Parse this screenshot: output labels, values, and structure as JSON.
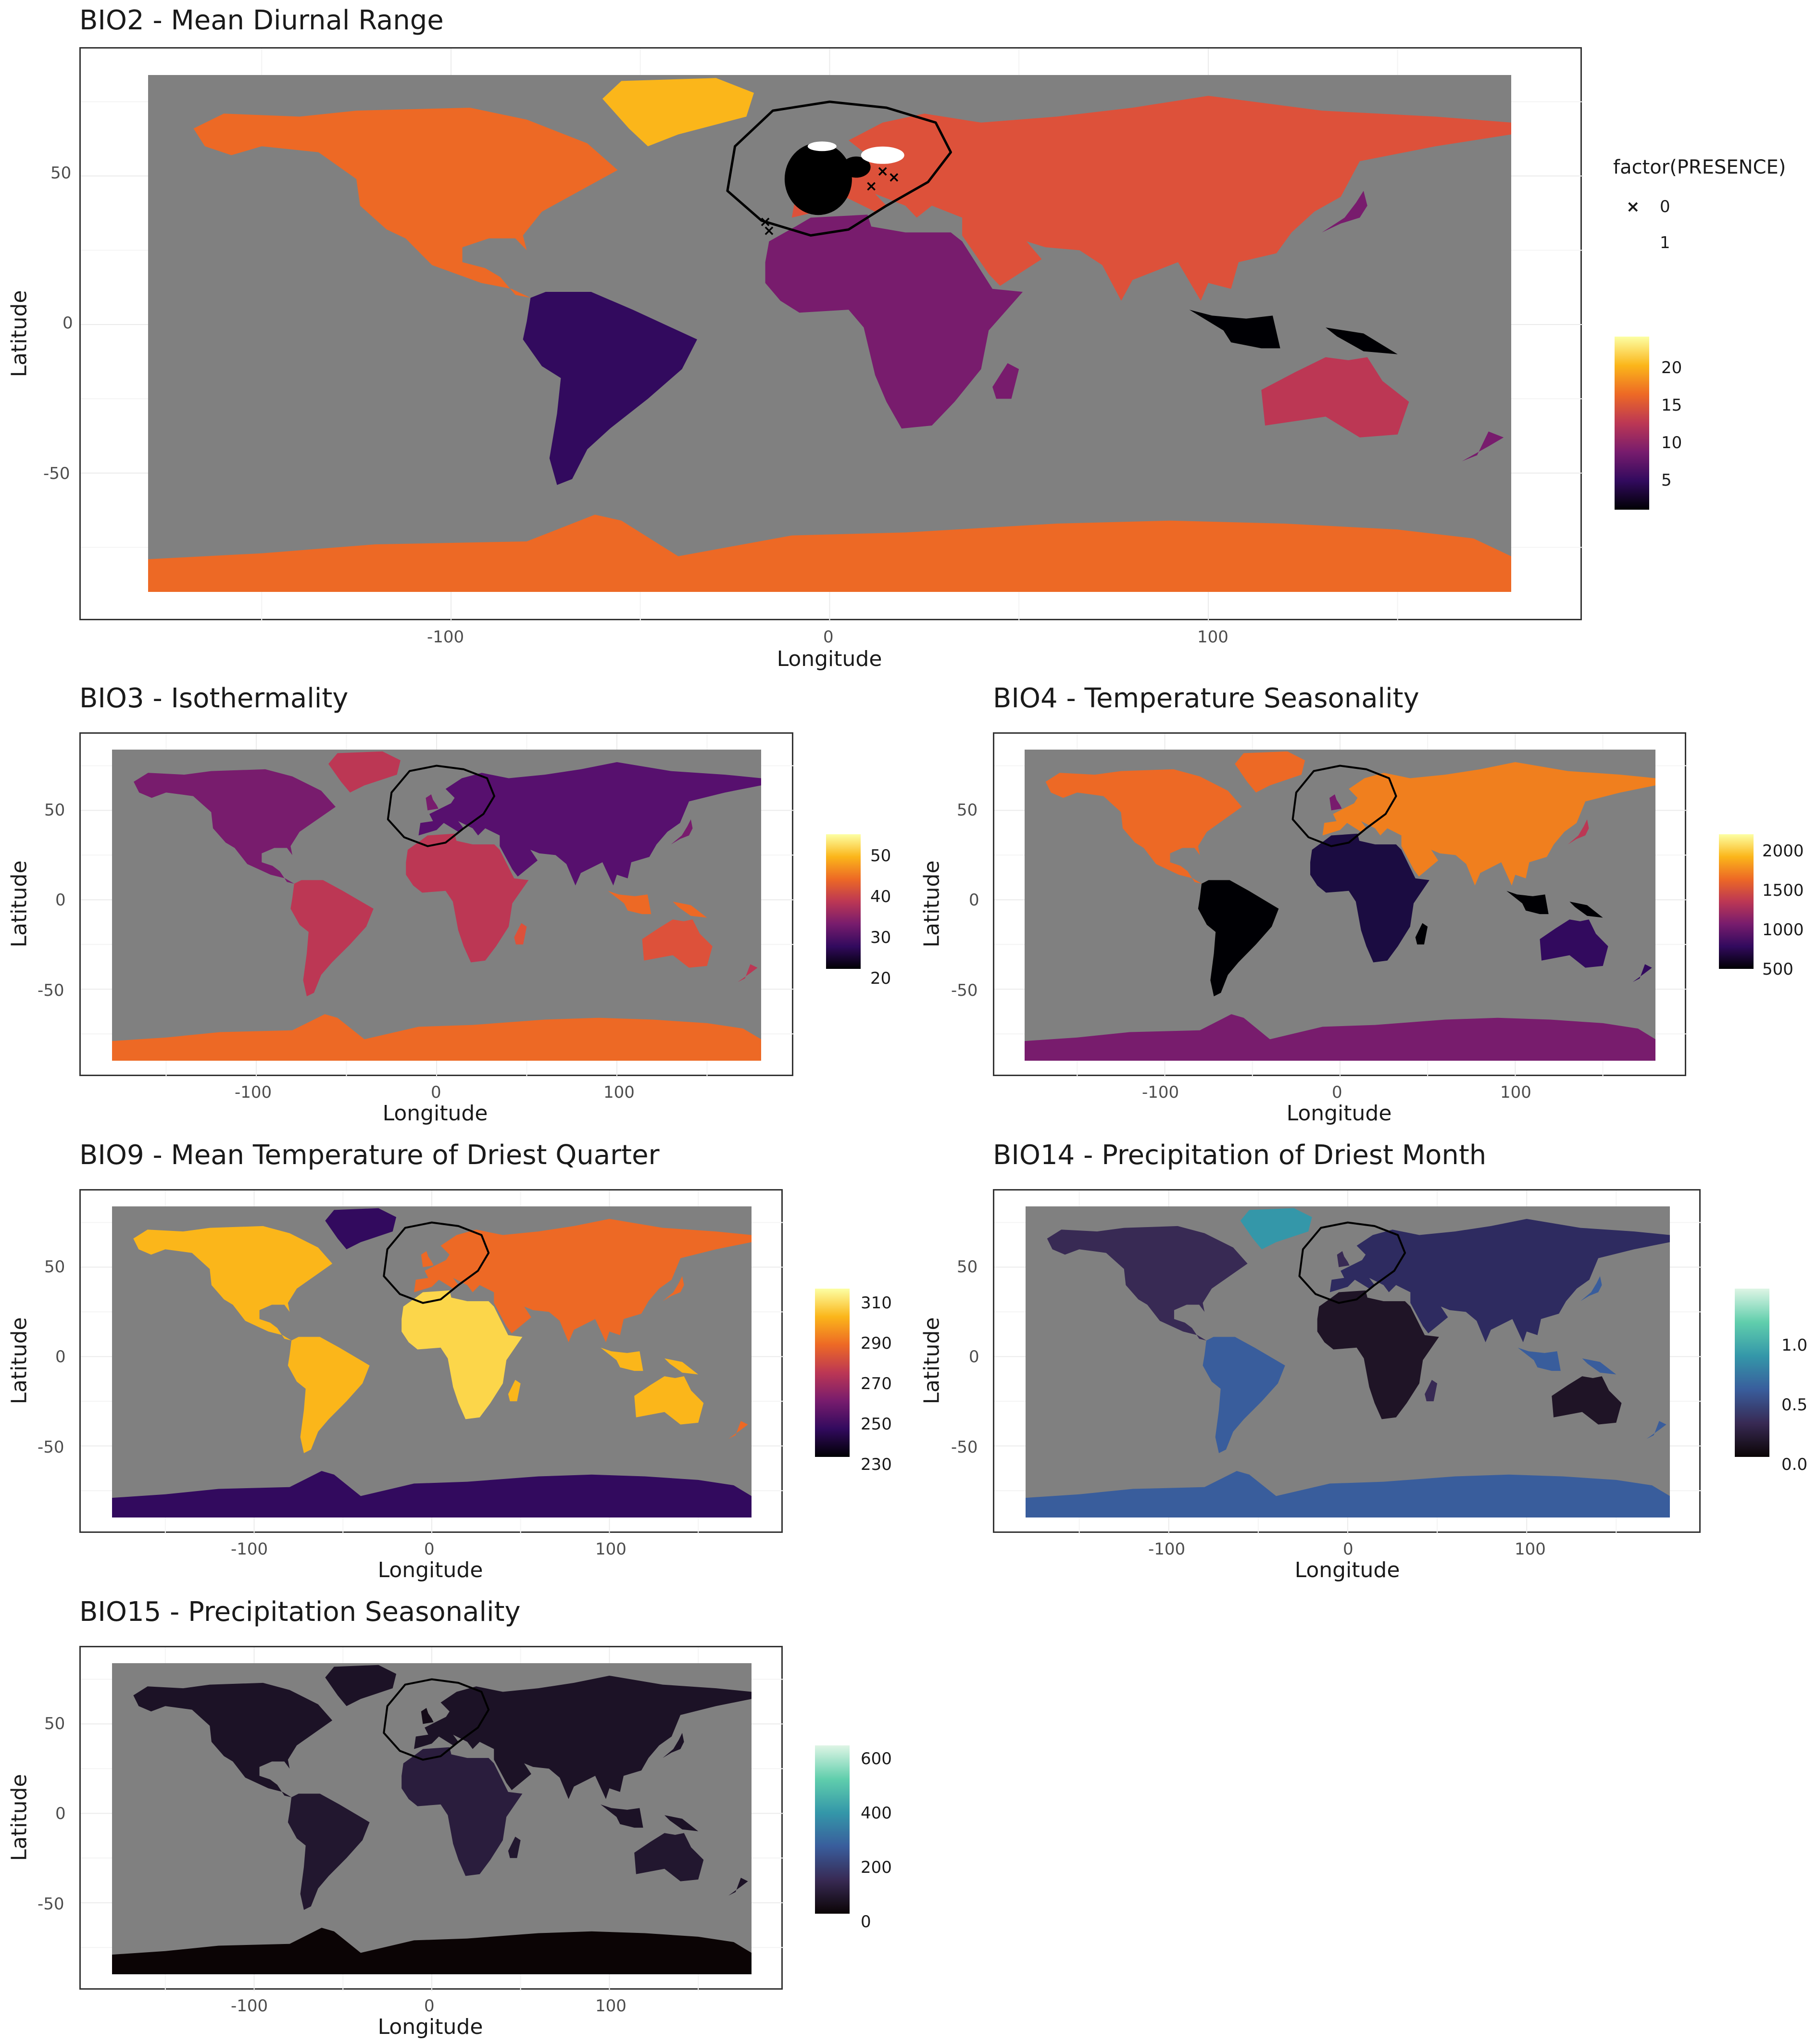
{
  "colors": {
    "ocean": "#808080",
    "inferno": [
      "#000004",
      "#320a5e",
      "#781c6d",
      "#bc3754",
      "#ed6925",
      "#fbb61a",
      "#fcffa4"
    ],
    "mako": [
      "#0b0405",
      "#382a54",
      "#395d9c",
      "#3497a9",
      "#60ceac",
      "#def5e5"
    ]
  },
  "axes": {
    "x_title": "Longitude",
    "y_title": "Latitude",
    "x_ticks": [
      -100,
      0,
      100
    ],
    "y_ticks": [
      50,
      0,
      -50
    ]
  },
  "panels": [
    {
      "id": "bio2",
      "title": "BIO2 - Mean Diurnal Range",
      "palette": "inferno",
      "colorbar": {
        "ticks": [
          20,
          15,
          10,
          5
        ],
        "range": [
          2.5,
          23.5
        ]
      },
      "legend": {
        "title": "factor(PRESENCE)",
        "items": [
          {
            "symbol": "×",
            "label": "0"
          },
          {
            "symbol": "",
            "label": "1"
          }
        ]
      }
    },
    {
      "id": "bio3",
      "title": "BIO3 - Isothermality",
      "palette": "inferno",
      "colorbar": {
        "ticks": [
          50,
          40,
          30,
          20
        ],
        "range": [
          14,
          56
        ]
      }
    },
    {
      "id": "bio4",
      "title": "BIO4 - Temperature Seasonality",
      "palette": "inferno",
      "colorbar": {
        "ticks": [
          2000,
          1500,
          1000,
          500
        ],
        "range": [
          150,
          2200
        ]
      }
    },
    {
      "id": "bio9",
      "title": "BIO9 - Mean Temperature of Driest Quarter",
      "palette": "inferno",
      "colorbar": {
        "ticks": [
          310,
          290,
          270,
          250,
          230
        ],
        "range": [
          227,
          314
        ]
      }
    },
    {
      "id": "bio14",
      "title": "BIO14 - Precipitation of Driest Month",
      "palette": "mako",
      "colorbar": {
        "ticks": [
          "1.0",
          "0.5",
          "0.0"
        ],
        "range": [
          0,
          1.45
        ]
      }
    },
    {
      "id": "bio15",
      "title": "BIO15 - Precipitation Seasonality",
      "palette": "mako",
      "colorbar": {
        "ticks": [
          600,
          400,
          200,
          0
        ],
        "range": [
          0,
          640
        ]
      }
    }
  ]
}
